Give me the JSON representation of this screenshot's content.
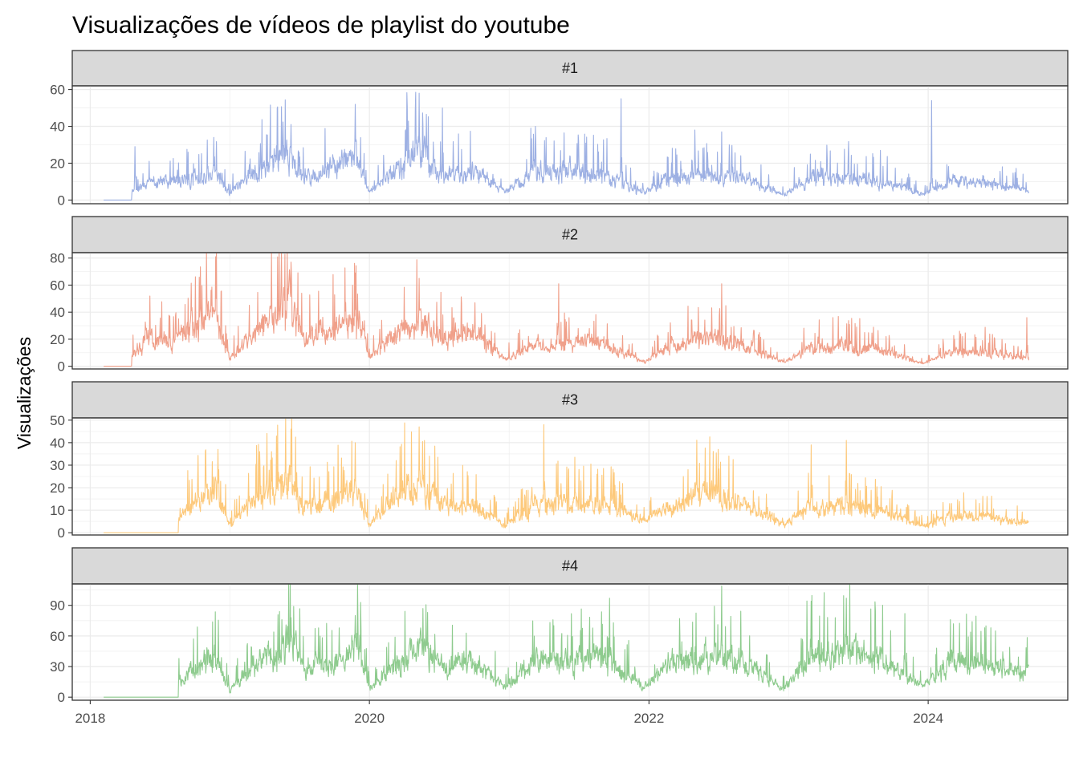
{
  "chart_data": {
    "type": "line",
    "title": "Visualizações de vídeos de playlist do youtube",
    "ylabel": "Visualizações",
    "xlabel": "",
    "x_range": [
      "2017-11-15",
      "2024-12-31"
    ],
    "x_ticks": [
      "2018",
      "2020",
      "2022",
      "2024"
    ],
    "grid": true,
    "legend": "none",
    "panels": [
      {
        "name": "#1",
        "color": "#9db0e3",
        "ylim": [
          -2,
          62
        ],
        "y_ticks": [
          0,
          20,
          40,
          60
        ],
        "data_start": "2018-04-20",
        "baseline_start": "2018-02-05",
        "series": [
          {
            "date": "2018-04-20",
            "value": 5
          },
          {
            "date": "2018-06-01",
            "value": 9
          },
          {
            "date": "2018-08-01",
            "value": 10
          },
          {
            "date": "2018-10-01",
            "value": 12
          },
          {
            "date": "2018-12-01",
            "value": 13
          },
          {
            "date": "2019-01-01",
            "value": 4
          },
          {
            "date": "2019-03-01",
            "value": 15
          },
          {
            "date": "2019-06-01",
            "value": 27
          },
          {
            "date": "2019-07-01",
            "value": 12
          },
          {
            "date": "2019-09-01",
            "value": 15
          },
          {
            "date": "2019-11-25",
            "value": 24
          },
          {
            "date": "2020-01-01",
            "value": 4
          },
          {
            "date": "2020-03-01",
            "value": 16
          },
          {
            "date": "2020-05-15",
            "value": 28
          },
          {
            "date": "2020-07-01",
            "value": 12
          },
          {
            "date": "2020-10-01",
            "value": 16
          },
          {
            "date": "2020-12-20",
            "value": 4
          },
          {
            "date": "2021-03-01",
            "value": 15
          },
          {
            "date": "2021-06-01",
            "value": 16
          },
          {
            "date": "2021-09-01",
            "value": 14
          },
          {
            "date": "2021-12-20",
            "value": 4
          },
          {
            "date": "2022-03-01",
            "value": 12
          },
          {
            "date": "2022-06-01",
            "value": 13
          },
          {
            "date": "2022-09-01",
            "value": 12
          },
          {
            "date": "2022-12-20",
            "value": 3
          },
          {
            "date": "2023-03-01",
            "value": 12
          },
          {
            "date": "2023-06-01",
            "value": 12
          },
          {
            "date": "2023-09-01",
            "value": 10
          },
          {
            "date": "2023-12-20",
            "value": 3
          },
          {
            "date": "2024-03-01",
            "value": 10
          },
          {
            "date": "2024-06-01",
            "value": 9
          },
          {
            "date": "2024-09-20",
            "value": 5
          }
        ],
        "spikes": [
          {
            "date": "2018-04-28",
            "value": 29
          },
          {
            "date": "2018-11-20",
            "value": 34
          },
          {
            "date": "2019-06-10",
            "value": 41
          },
          {
            "date": "2019-11-25",
            "value": 52
          },
          {
            "date": "2020-05-10",
            "value": 58
          },
          {
            "date": "2020-07-10",
            "value": 50
          },
          {
            "date": "2021-03-10",
            "value": 40
          },
          {
            "date": "2021-10-20",
            "value": 55
          },
          {
            "date": "2022-05-01",
            "value": 38
          },
          {
            "date": "2022-07-10",
            "value": 37
          },
          {
            "date": "2024-01-10",
            "value": 54
          }
        ]
      },
      {
        "name": "#2",
        "color": "#f0a08a",
        "ylim": [
          -2,
          84
        ],
        "y_ticks": [
          0,
          20,
          40,
          60,
          80
        ],
        "data_start": "2018-04-20",
        "baseline_start": "2018-02-05",
        "series": [
          {
            "date": "2018-04-20",
            "value": 8
          },
          {
            "date": "2018-06-01",
            "value": 22
          },
          {
            "date": "2018-08-01",
            "value": 18
          },
          {
            "date": "2018-11-20",
            "value": 40
          },
          {
            "date": "2019-01-01",
            "value": 6
          },
          {
            "date": "2019-03-01",
            "value": 22
          },
          {
            "date": "2019-06-10",
            "value": 50
          },
          {
            "date": "2019-07-10",
            "value": 22
          },
          {
            "date": "2019-10-01",
            "value": 25
          },
          {
            "date": "2019-12-01",
            "value": 38
          },
          {
            "date": "2020-01-01",
            "value": 6
          },
          {
            "date": "2020-03-01",
            "value": 22
          },
          {
            "date": "2020-05-10",
            "value": 32
          },
          {
            "date": "2020-07-10",
            "value": 20
          },
          {
            "date": "2020-10-01",
            "value": 25
          },
          {
            "date": "2020-12-20",
            "value": 5
          },
          {
            "date": "2021-03-01",
            "value": 15
          },
          {
            "date": "2021-06-01",
            "value": 17
          },
          {
            "date": "2021-09-01",
            "value": 18
          },
          {
            "date": "2021-12-20",
            "value": 3
          },
          {
            "date": "2022-03-01",
            "value": 15
          },
          {
            "date": "2022-06-01",
            "value": 22
          },
          {
            "date": "2022-09-01",
            "value": 16
          },
          {
            "date": "2022-12-20",
            "value": 3
          },
          {
            "date": "2023-03-01",
            "value": 14
          },
          {
            "date": "2023-06-01",
            "value": 16
          },
          {
            "date": "2023-09-01",
            "value": 12
          },
          {
            "date": "2023-12-20",
            "value": 2
          },
          {
            "date": "2024-03-01",
            "value": 10
          },
          {
            "date": "2024-06-01",
            "value": 11
          },
          {
            "date": "2024-09-20",
            "value": 6
          }
        ],
        "spikes": [
          {
            "date": "2018-11-25",
            "value": 81
          },
          {
            "date": "2019-06-10",
            "value": 77
          },
          {
            "date": "2019-11-25",
            "value": 69
          },
          {
            "date": "2020-05-10",
            "value": 65
          },
          {
            "date": "2021-05-10",
            "value": 61
          },
          {
            "date": "2022-07-10",
            "value": 61
          },
          {
            "date": "2024-09-15",
            "value": 36
          }
        ]
      },
      {
        "name": "#3",
        "color": "#fdc97b",
        "ylim": [
          -1,
          51
        ],
        "y_ticks": [
          0,
          10,
          20,
          30,
          40,
          50
        ],
        "data_start": "2018-08-20",
        "baseline_start": "2018-02-05",
        "series": [
          {
            "date": "2018-08-20",
            "value": 6
          },
          {
            "date": "2018-10-01",
            "value": 14
          },
          {
            "date": "2018-11-20",
            "value": 20
          },
          {
            "date": "2019-01-01",
            "value": 4
          },
          {
            "date": "2019-03-01",
            "value": 14
          },
          {
            "date": "2019-06-10",
            "value": 24
          },
          {
            "date": "2019-07-10",
            "value": 12
          },
          {
            "date": "2019-10-01",
            "value": 14
          },
          {
            "date": "2019-12-01",
            "value": 20
          },
          {
            "date": "2020-01-01",
            "value": 3
          },
          {
            "date": "2020-03-01",
            "value": 16
          },
          {
            "date": "2020-05-10",
            "value": 22
          },
          {
            "date": "2020-07-10",
            "value": 12
          },
          {
            "date": "2020-10-01",
            "value": 12
          },
          {
            "date": "2020-12-20",
            "value": 3
          },
          {
            "date": "2021-03-01",
            "value": 12
          },
          {
            "date": "2021-06-01",
            "value": 13
          },
          {
            "date": "2021-09-01",
            "value": 14
          },
          {
            "date": "2021-12-20",
            "value": 5
          },
          {
            "date": "2022-03-01",
            "value": 12
          },
          {
            "date": "2022-06-01",
            "value": 18
          },
          {
            "date": "2022-09-01",
            "value": 12
          },
          {
            "date": "2022-12-20",
            "value": 4
          },
          {
            "date": "2023-03-01",
            "value": 12
          },
          {
            "date": "2023-06-01",
            "value": 12
          },
          {
            "date": "2023-09-01",
            "value": 9
          },
          {
            "date": "2023-12-20",
            "value": 3
          },
          {
            "date": "2024-03-01",
            "value": 7
          },
          {
            "date": "2024-06-01",
            "value": 7
          },
          {
            "date": "2024-09-20",
            "value": 4
          }
        ],
        "spikes": [
          {
            "date": "2018-12-01",
            "value": 37
          },
          {
            "date": "2019-04-20",
            "value": 36
          },
          {
            "date": "2019-06-10",
            "value": 46
          },
          {
            "date": "2019-11-25",
            "value": 40
          },
          {
            "date": "2020-05-10",
            "value": 47
          },
          {
            "date": "2021-04-01",
            "value": 48
          },
          {
            "date": "2022-07-01",
            "value": 37
          },
          {
            "date": "2023-03-01",
            "value": 39
          },
          {
            "date": "2023-06-01",
            "value": 41
          }
        ]
      },
      {
        "name": "#4",
        "color": "#8ecb8e",
        "ylim": [
          -3,
          111
        ],
        "y_ticks": [
          0,
          30,
          60,
          90
        ],
        "data_start": "2018-08-20",
        "baseline_start": "2018-02-05",
        "series": [
          {
            "date": "2018-08-20",
            "value": 15
          },
          {
            "date": "2018-10-01",
            "value": 28
          },
          {
            "date": "2018-11-20",
            "value": 40
          },
          {
            "date": "2019-01-01",
            "value": 6
          },
          {
            "date": "2019-03-01",
            "value": 30
          },
          {
            "date": "2019-06-10",
            "value": 55
          },
          {
            "date": "2019-07-10",
            "value": 30
          },
          {
            "date": "2019-10-01",
            "value": 32
          },
          {
            "date": "2019-12-01",
            "value": 50
          },
          {
            "date": "2020-01-01",
            "value": 8
          },
          {
            "date": "2020-03-01",
            "value": 30
          },
          {
            "date": "2020-05-10",
            "value": 50
          },
          {
            "date": "2020-07-10",
            "value": 30
          },
          {
            "date": "2020-10-01",
            "value": 35
          },
          {
            "date": "2020-12-20",
            "value": 10
          },
          {
            "date": "2021-03-01",
            "value": 35
          },
          {
            "date": "2021-06-01",
            "value": 35
          },
          {
            "date": "2021-09-01",
            "value": 40
          },
          {
            "date": "2021-12-20",
            "value": 10
          },
          {
            "date": "2022-03-01",
            "value": 35
          },
          {
            "date": "2022-06-01",
            "value": 40
          },
          {
            "date": "2022-09-01",
            "value": 35
          },
          {
            "date": "2022-12-20",
            "value": 8
          },
          {
            "date": "2023-03-01",
            "value": 40
          },
          {
            "date": "2023-06-01",
            "value": 45
          },
          {
            "date": "2023-09-01",
            "value": 35
          },
          {
            "date": "2023-12-20",
            "value": 10
          },
          {
            "date": "2024-03-01",
            "value": 35
          },
          {
            "date": "2024-06-01",
            "value": 30
          },
          {
            "date": "2024-09-20",
            "value": 25
          }
        ],
        "spikes": [
          {
            "date": "2019-06-10",
            "value": 78
          },
          {
            "date": "2019-11-25",
            "value": 80
          },
          {
            "date": "2020-06-01",
            "value": 83
          },
          {
            "date": "2021-09-20",
            "value": 97
          },
          {
            "date": "2022-07-10",
            "value": 109
          },
          {
            "date": "2023-03-01",
            "value": 94
          },
          {
            "date": "2023-06-01",
            "value": 97
          },
          {
            "date": "2023-11-01",
            "value": 82
          }
        ]
      }
    ]
  }
}
